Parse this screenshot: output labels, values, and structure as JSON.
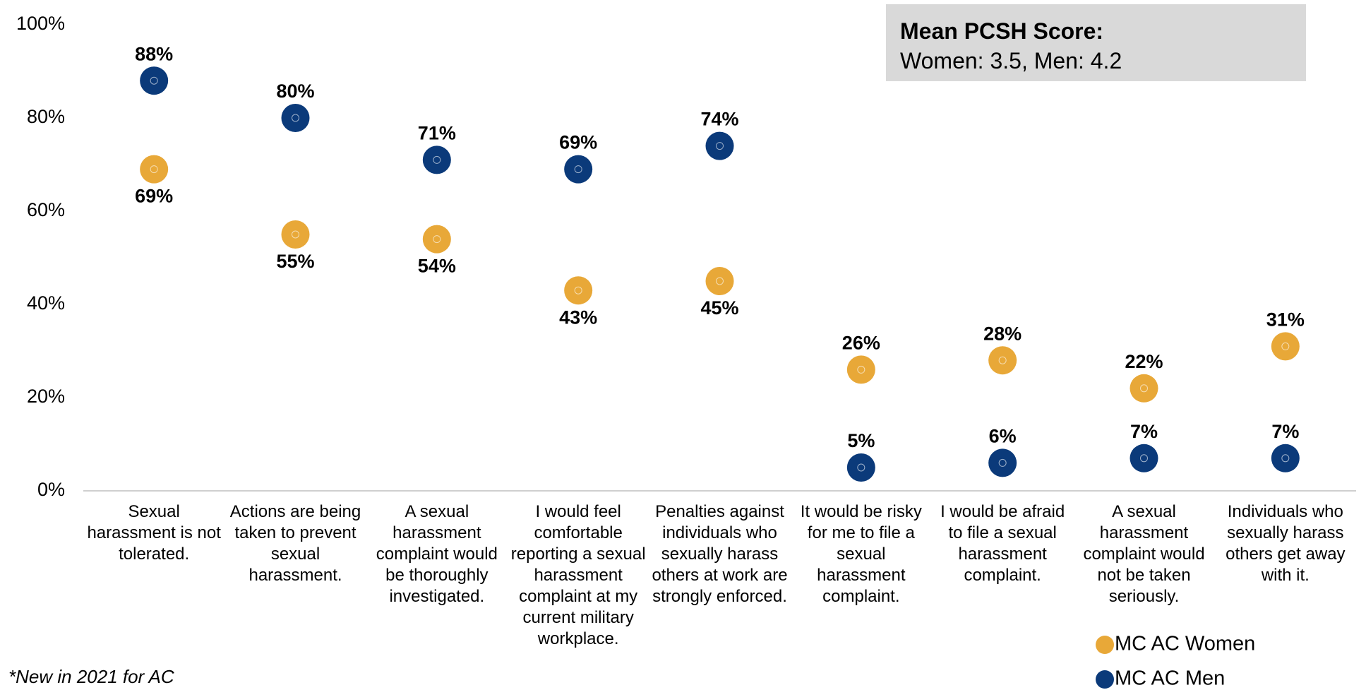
{
  "chart_data": {
    "type": "dot",
    "categories": [
      "Sexual harassment is not tolerated.",
      "Actions are being taken to prevent sexual harassment.",
      "A sexual harassment complaint would be thoroughly investigated.",
      "I would feel comfortable reporting a sexual harassment complaint at my current military workplace.",
      "Penalties against individuals who sexually harass others at work are strongly enforced.",
      "It would be risky for me to file a sexual harassment complaint.",
      "I would be afraid to file a sexual harassment complaint.",
      "A sexual harassment complaint would not be taken seriously.",
      "Individuals who sexually harass others get away with it."
    ],
    "series": [
      {
        "name": "MC AC Women",
        "color": "#e8a838",
        "values": [
          69,
          55,
          54,
          43,
          45,
          26,
          28,
          22,
          31
        ],
        "value_labels": [
          "69%",
          "55%",
          "54%",
          "43%",
          "45%",
          "26%",
          "28%",
          "22%",
          "31%"
        ]
      },
      {
        "name": "MC AC Men",
        "color": "#0b3a7a",
        "values": [
          88,
          80,
          71,
          69,
          74,
          5,
          6,
          7,
          7
        ],
        "value_labels": [
          "88%",
          "80%",
          "71%",
          "69%",
          "74%",
          "5%",
          "6%",
          "7%",
          "7%"
        ]
      }
    ],
    "ylim": [
      0,
      100
    ],
    "yticks": [
      {
        "value": 0,
        "label": "0%"
      },
      {
        "value": 20,
        "label": "20%"
      },
      {
        "value": 40,
        "label": "40%"
      },
      {
        "value": 60,
        "label": "60%"
      },
      {
        "value": 80,
        "label": "80%"
      },
      {
        "value": 100,
        "label": "100%"
      }
    ],
    "grid": false,
    "legend": "bottom-right",
    "annotation": {
      "title": "Mean PCSH Score:",
      "text": "Women: 3.5, Men: 4.2"
    },
    "footnote": "*New in 2021 for AC"
  }
}
